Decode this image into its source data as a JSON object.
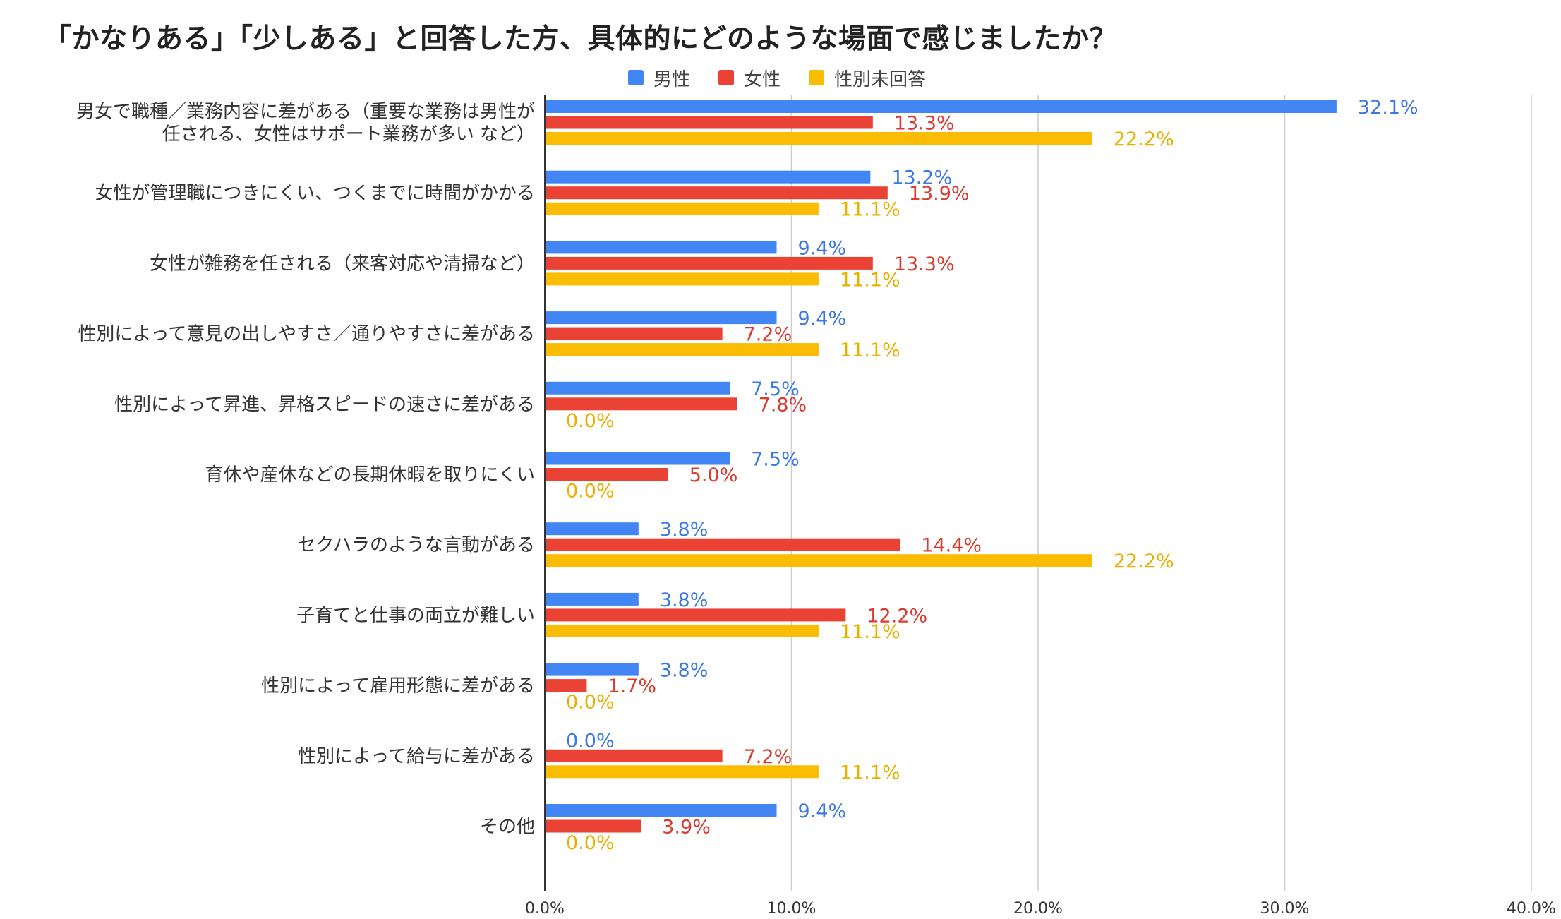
{
  "chart_data": {
    "type": "bar",
    "orientation": "horizontal",
    "title": "「かなりある」「少しある」と回答した方、具体的にどのような場面で感じましたか？",
    "xlabel": "",
    "ylabel": "",
    "xlim": [
      0,
      40
    ],
    "ticks": [
      "0.0%",
      "10.0%",
      "20.0%",
      "30.0%",
      "40.0%"
    ],
    "tick_values": [
      0,
      10,
      20,
      30,
      40
    ],
    "grid": true,
    "legend_position": "top-center",
    "categories": [
      [
        "男女で職種／業務内容に差がある（重要な業務は男性が",
        "任される、女性はサポート業務が多い など）"
      ],
      [
        "女性が管理職につきにくい、つくまでに時間がかかる"
      ],
      [
        "女性が雑務を任される（来客対応や清掃など）"
      ],
      [
        "性別によって意見の出しやすさ／通りやすさに差がある"
      ],
      [
        "性別によって昇進、昇格スピードの速さに差がある"
      ],
      [
        "育休や産休などの長期休暇を取りにくい"
      ],
      [
        "セクハラのような言動がある"
      ],
      [
        "子育てと仕事の両立が難しい"
      ],
      [
        "性別によって雇用形態に差がある"
      ],
      [
        "性別によって給与に差がある"
      ],
      [
        "その他"
      ]
    ],
    "series": [
      {
        "name": "男性",
        "color": "#4285F4",
        "values": [
          32.1,
          13.2,
          9.4,
          9.4,
          7.5,
          7.5,
          3.8,
          3.8,
          3.8,
          0.0,
          9.4
        ],
        "labels": [
          "32.1%",
          "13.2%",
          "9.4%",
          "9.4%",
          "7.5%",
          "7.5%",
          "3.8%",
          "3.8%",
          "3.8%",
          "0.0%",
          "9.4%"
        ]
      },
      {
        "name": "女性",
        "color": "#EA4335",
        "values": [
          13.3,
          13.9,
          13.3,
          7.2,
          7.8,
          5.0,
          14.4,
          12.2,
          1.7,
          7.2,
          3.9
        ],
        "labels": [
          "13.3%",
          "13.9%",
          "13.3%",
          "7.2%",
          "7.8%",
          "5.0%",
          "14.4%",
          "12.2%",
          "1.7%",
          "7.2%",
          "3.9%"
        ]
      },
      {
        "name": "性別未回答",
        "color": "#FBBC04",
        "values": [
          22.2,
          11.1,
          11.1,
          11.1,
          0.0,
          0.0,
          22.2,
          11.1,
          0.0,
          11.1,
          0.0
        ],
        "labels": [
          "22.2%",
          "11.1%",
          "11.1%",
          "11.1%",
          "0.0%",
          "0.0%",
          "22.2%",
          "11.1%",
          "0.0%",
          "11.1%",
          "0.0%"
        ]
      }
    ]
  }
}
